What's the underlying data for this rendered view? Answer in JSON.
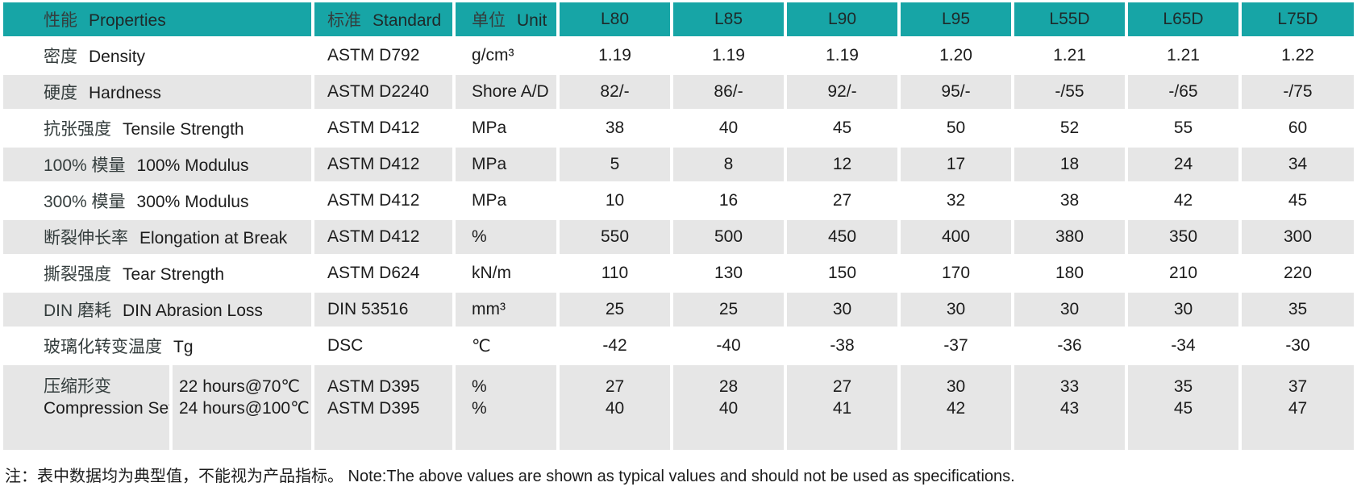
{
  "colors": {
    "header_bg": "#17a5a6",
    "row_alt_bg": "#e6e6e6",
    "text": "#1c1c1c"
  },
  "header": {
    "properties_cn": "性能",
    "properties_en": "Properties",
    "standard_cn": "标准",
    "standard_en": "Standard",
    "unit_cn": "单位",
    "unit_en": "Unit",
    "grades": [
      "L80",
      "L85",
      "L90",
      "L95",
      "L55D",
      "L65D",
      "L75D"
    ]
  },
  "rows": [
    {
      "cn": "密度",
      "en": "Density",
      "standard": "ASTM D792",
      "unit": "g/cm³",
      "values": [
        "1.19",
        "1.19",
        "1.19",
        "1.20",
        "1.21",
        "1.21",
        "1.22"
      ]
    },
    {
      "cn": "硬度",
      "en": "Hardness",
      "standard": "ASTM D2240",
      "unit": "Shore A/D",
      "values": [
        "82/-",
        "86/-",
        "92/-",
        "95/-",
        "-/55",
        "-/65",
        "-/75"
      ]
    },
    {
      "cn": "抗张强度",
      "en": "Tensile Strength",
      "standard": "ASTM D412",
      "unit": "MPa",
      "values": [
        "38",
        "40",
        "45",
        "50",
        "52",
        "55",
        "60"
      ]
    },
    {
      "cn": "100% 模量",
      "en": "100% Modulus",
      "standard": "ASTM D412",
      "unit": "MPa",
      "values": [
        "5",
        "8",
        "12",
        "17",
        "18",
        "24",
        "34"
      ]
    },
    {
      "cn": "300% 模量",
      "en": "300% Modulus",
      "standard": "ASTM D412",
      "unit": "MPa",
      "values": [
        "10",
        "16",
        "27",
        "32",
        "38",
        "42",
        "45"
      ]
    },
    {
      "cn": "断裂伸长率",
      "en": "Elongation at Break",
      "standard": "ASTM D412",
      "unit": "%",
      "values": [
        "550",
        "500",
        "450",
        "400",
        "380",
        "350",
        "300"
      ]
    },
    {
      "cn": "撕裂强度",
      "en": "Tear Strength",
      "standard": "ASTM D624",
      "unit": "kN/m",
      "values": [
        "110",
        "130",
        "150",
        "170",
        "180",
        "210",
        "220"
      ]
    },
    {
      "cn": "DIN 磨耗",
      "en": "DIN Abrasion Loss",
      "standard": "DIN 53516",
      "unit": "mm³",
      "values": [
        "25",
        "25",
        "30",
        "30",
        "30",
        "30",
        "35"
      ]
    },
    {
      "cn": "玻璃化转变温度",
      "en": "Tg",
      "standard": "DSC",
      "unit": "℃",
      "values": [
        "-42",
        "-40",
        "-38",
        "-37",
        "-36",
        "-34",
        "-30"
      ]
    }
  ],
  "compression_row": {
    "cn": "压缩形变",
    "en": "Compression Set",
    "conditions": [
      "22 hours@70℃",
      "24 hours@100℃"
    ],
    "standards": [
      "ASTM D395",
      "ASTM D395"
    ],
    "units": [
      "%",
      "%"
    ],
    "values": [
      [
        "27",
        "40"
      ],
      [
        "28",
        "40"
      ],
      [
        "27",
        "41"
      ],
      [
        "30",
        "42"
      ],
      [
        "33",
        "43"
      ],
      [
        "35",
        "45"
      ],
      [
        "37",
        "47"
      ]
    ]
  },
  "note": "注：表中数据均为典型值，不能视为产品指标。 Note:The above values are shown as typical values and should not be used as specifications."
}
